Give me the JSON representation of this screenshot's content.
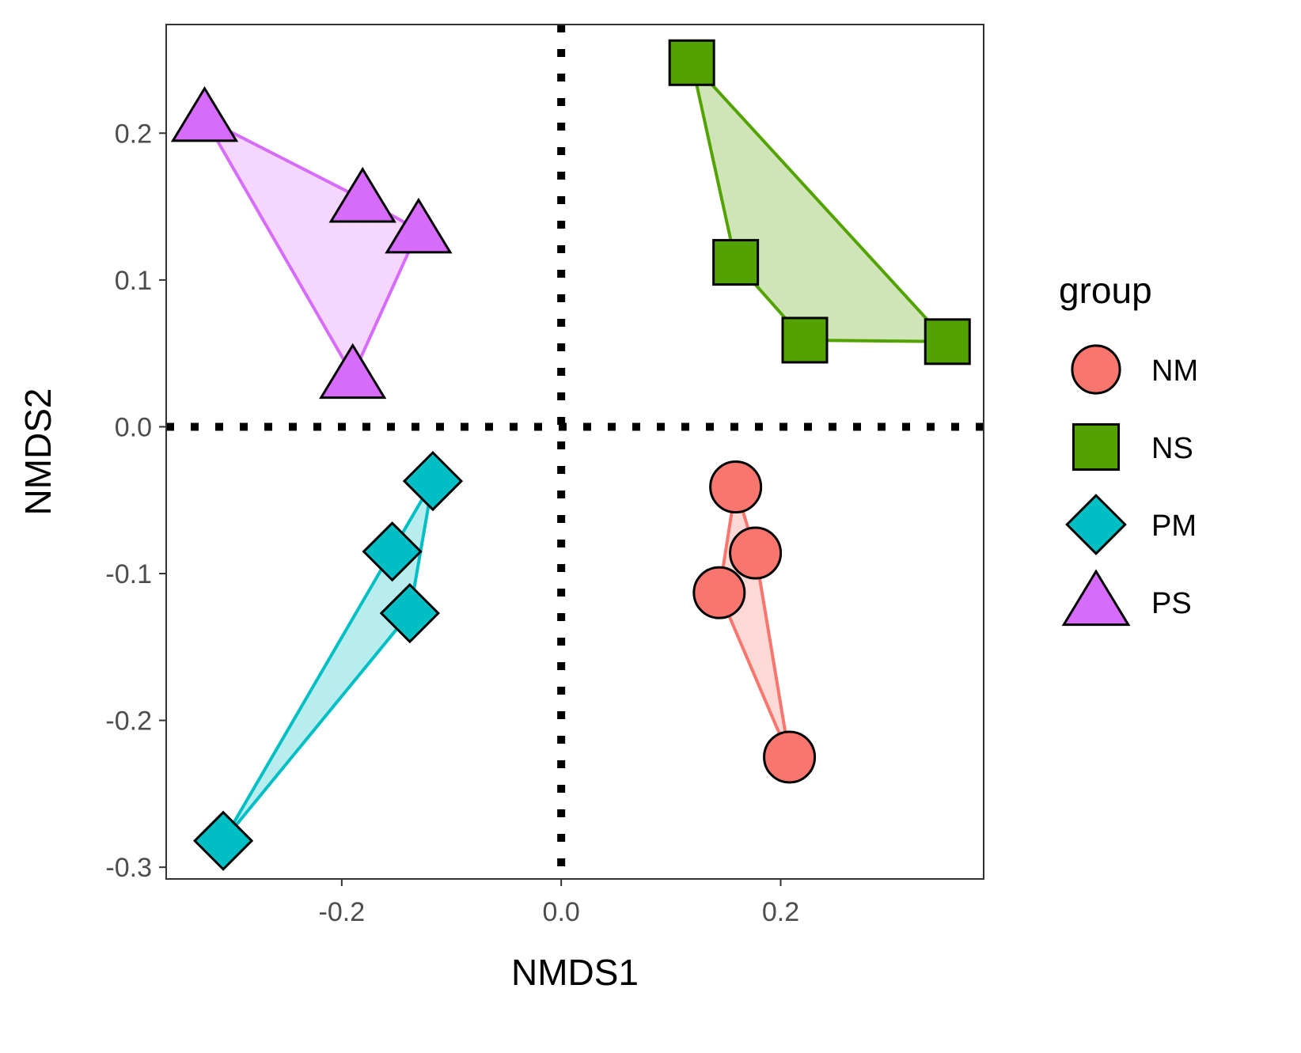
{
  "chart_data": {
    "type": "scatter",
    "xlabel": "NMDS1",
    "ylabel": "NMDS2",
    "xlim": [
      -0.36,
      0.385
    ],
    "ylim": [
      -0.308,
      0.274
    ],
    "x_ticks": [
      -0.2,
      0.0,
      0.2
    ],
    "x_tick_labels": [
      "-0.2",
      "0.0",
      "0.2"
    ],
    "y_ticks": [
      -0.3,
      -0.2,
      -0.1,
      0.0,
      0.1,
      0.2
    ],
    "y_tick_labels": [
      "-0.3",
      "-0.2",
      "-0.1",
      "0.0",
      "0.1",
      "0.2"
    ],
    "reference_lines": [
      {
        "orientation": "vertical",
        "value": 0.0,
        "style": "dotted"
      },
      {
        "orientation": "horizontal",
        "value": 0.0,
        "style": "dotted"
      }
    ],
    "hulls": true,
    "legend": {
      "title": "group",
      "position": "right"
    },
    "series": [
      {
        "name": "NM",
        "shape": "circle",
        "color": "#F8766D",
        "points": [
          {
            "x": 0.159,
            "y": -0.041
          },
          {
            "x": 0.177,
            "y": -0.086
          },
          {
            "x": 0.144,
            "y": -0.113
          },
          {
            "x": 0.208,
            "y": -0.225
          }
        ]
      },
      {
        "name": "NS",
        "shape": "square",
        "color": "#53A300",
        "points": [
          {
            "x": 0.119,
            "y": 0.248
          },
          {
            "x": 0.159,
            "y": 0.112
          },
          {
            "x": 0.222,
            "y": 0.059
          },
          {
            "x": 0.352,
            "y": 0.058
          }
        ]
      },
      {
        "name": "PM",
        "shape": "diamond",
        "color": "#00BFC4",
        "points": [
          {
            "x": -0.117,
            "y": -0.037
          },
          {
            "x": -0.154,
            "y": -0.085
          },
          {
            "x": -0.138,
            "y": -0.127
          },
          {
            "x": -0.308,
            "y": -0.282
          }
        ]
      },
      {
        "name": "PS",
        "shape": "triangle",
        "color": "#D76BFA",
        "points": [
          {
            "x": -0.325,
            "y": 0.21
          },
          {
            "x": -0.181,
            "y": 0.155
          },
          {
            "x": -0.13,
            "y": 0.134
          },
          {
            "x": -0.19,
            "y": 0.035
          }
        ]
      }
    ]
  }
}
